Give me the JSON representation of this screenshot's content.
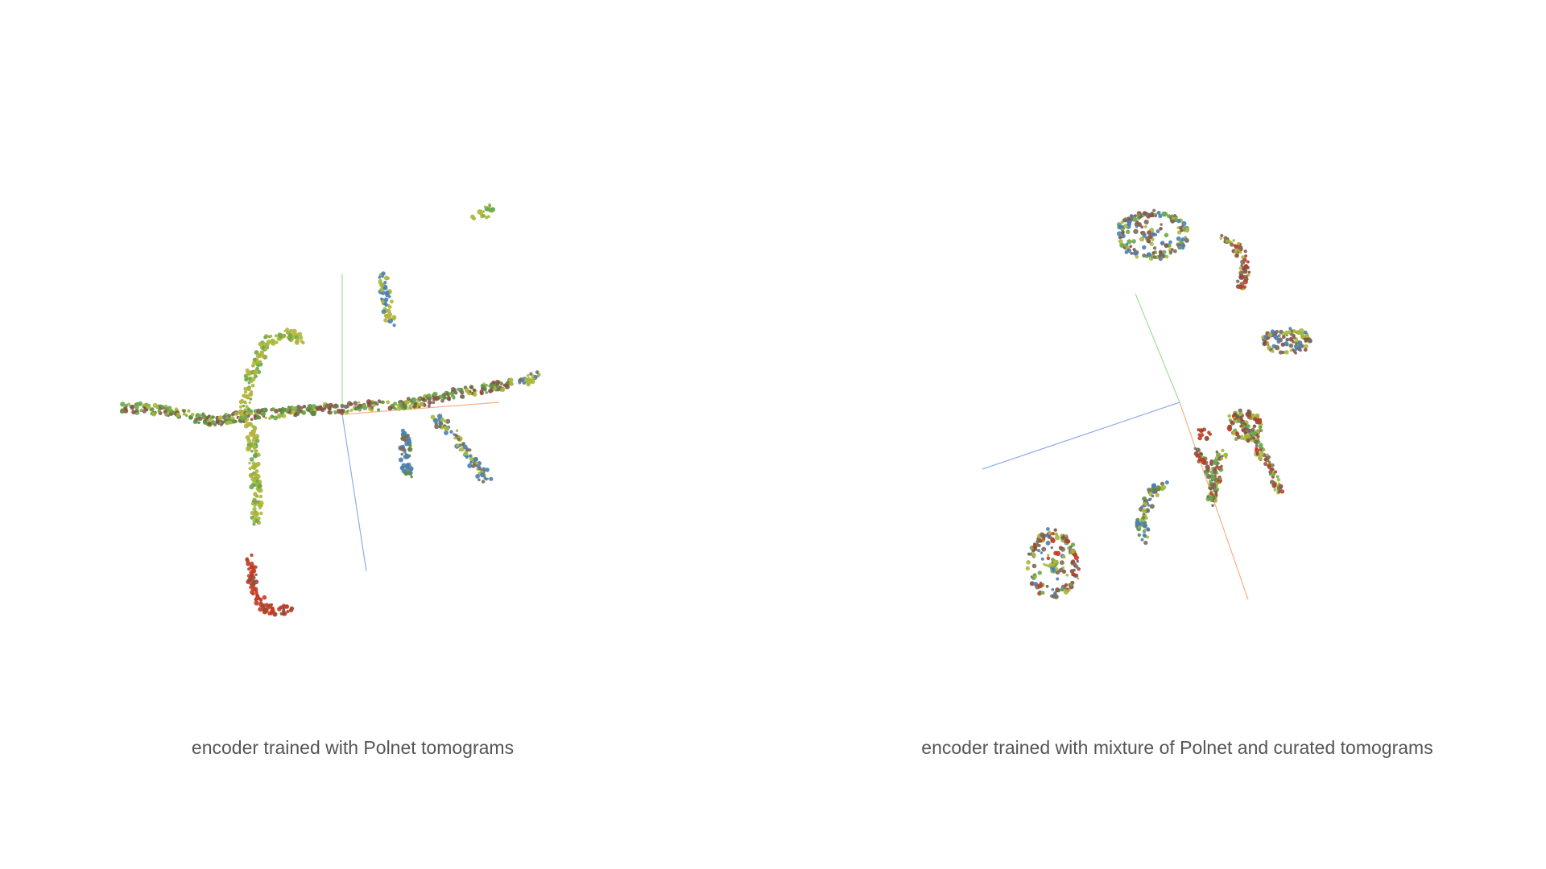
{
  "chart_data": [
    {
      "type": "scatter",
      "projection": "3d-embedding",
      "caption": "encoder trained with Polnet tomograms",
      "palette": [
        "#a9b83b",
        "#6aa84f",
        "#4a7fb5",
        "#c23b22",
        "#7a6a5a",
        "#b5b33a",
        "#5b8f3c",
        "#8b4f3f"
      ],
      "axes": [
        {
          "name": "x",
          "color": "#f5b08a"
        },
        {
          "name": "y",
          "color": "#9fe19a"
        },
        {
          "name": "z",
          "color": "#8faee8"
        }
      ],
      "clusters": [
        {
          "name": "horizontal-branch",
          "colors": [
            0,
            1,
            4,
            6,
            7
          ],
          "path": [
            [
              -2.9,
              0.1
            ],
            [
              -2.3,
              0.05
            ],
            [
              -1.7,
              -0.1
            ],
            [
              -1.1,
              0.0
            ],
            [
              -0.4,
              0.05
            ],
            [
              0.3,
              0.1
            ],
            [
              1.0,
              0.15
            ],
            [
              1.6,
              0.3
            ],
            [
              2.2,
              0.4
            ]
          ]
        },
        {
          "name": "upper-hook",
          "colors": [
            0,
            1,
            5
          ],
          "path": [
            [
              -1.3,
              -0.1
            ],
            [
              -1.2,
              0.5
            ],
            [
              -1.0,
              0.95
            ],
            [
              -0.7,
              1.05
            ],
            [
              -0.5,
              0.95
            ]
          ]
        },
        {
          "name": "vertical-stem",
          "colors": [
            0,
            1,
            5
          ],
          "path": [
            [
              -1.2,
              -0.1
            ],
            [
              -1.15,
              -0.6
            ],
            [
              -1.12,
              -1.1
            ],
            [
              -1.12,
              -1.4
            ]
          ]
        },
        {
          "name": "red-hook",
          "colors": [
            3,
            3,
            3,
            7
          ],
          "path": [
            [
              -1.2,
              -1.9
            ],
            [
              -1.15,
              -2.3
            ],
            [
              -1.05,
              -2.5
            ],
            [
              -0.85,
              -2.6
            ],
            [
              -0.7,
              -2.55
            ]
          ]
        },
        {
          "name": "small-upper-arm",
          "colors": [
            0,
            2,
            5
          ],
          "path": [
            [
              0.52,
              1.85
            ],
            [
              0.58,
              1.5
            ],
            [
              0.62,
              1.2
            ]
          ]
        },
        {
          "name": "top-fragment",
          "colors": [
            0,
            1,
            5
          ],
          "path": [
            [
              1.75,
              2.55
            ],
            [
              1.95,
              2.7
            ]
          ]
        },
        {
          "name": "blue-arm-down",
          "colors": [
            2,
            2,
            4,
            6
          ],
          "path": [
            [
              0.85,
              -0.2
            ],
            [
              0.82,
              -0.5
            ],
            [
              0.86,
              -0.8
            ]
          ]
        },
        {
          "name": "right-arm",
          "colors": [
            2,
            4,
            0
          ],
          "path": [
            [
              1.2,
              -0.05
            ],
            [
              1.5,
              -0.3
            ],
            [
              1.75,
              -0.7
            ],
            [
              1.9,
              -0.85
            ]
          ]
        },
        {
          "name": "far-right-fragment",
          "colors": [
            2,
            4,
            0
          ],
          "path": [
            [
              2.3,
              0.4
            ],
            [
              2.55,
              0.5
            ]
          ]
        }
      ]
    },
    {
      "type": "scatter",
      "projection": "3d-embedding",
      "caption": "encoder trained with mixture of Polnet and curated tomograms",
      "palette": [
        "#a9b83b",
        "#6aa84f",
        "#4a7fb5",
        "#c23b22",
        "#7a6a5a",
        "#b5b33a",
        "#5b8f3c",
        "#8b4f3f"
      ],
      "axes": [
        {
          "name": "x",
          "color": "#f5b08a"
        },
        {
          "name": "y",
          "color": "#9fe19a"
        },
        {
          "name": "z",
          "color": "#8faee8"
        }
      ],
      "clusters": [
        {
          "name": "top-left-loop",
          "colors": [
            0,
            2,
            4,
            7,
            1
          ],
          "loop": [
            -0.3,
            2.25,
            0.45,
            0.3
          ]
        },
        {
          "name": "top-right-crescent",
          "colors": [
            0,
            4,
            3,
            7
          ],
          "path": [
            [
              0.65,
              2.2
            ],
            [
              0.85,
              2.05
            ],
            [
              0.92,
              1.8
            ],
            [
              0.85,
              1.55
            ]
          ]
        },
        {
          "name": "right-loop",
          "colors": [
            0,
            4,
            7,
            2
          ],
          "loop": [
            1.45,
            0.85,
            0.3,
            0.15
          ]
        },
        {
          "name": "center-cluster",
          "colors": [
            0,
            1,
            3,
            4,
            7
          ],
          "path": [
            [
              0.8,
              -0.1
            ],
            [
              0.95,
              -0.3
            ],
            [
              1.2,
              -0.75
            ],
            [
              1.35,
              -1.1
            ]
          ]
        },
        {
          "name": "center-blob",
          "colors": [
            0,
            3,
            4,
            1,
            7
          ],
          "loop": [
            0.9,
            -0.25,
            0.22,
            0.18
          ]
        },
        {
          "name": "red-fragment",
          "colors": [
            3,
            3,
            3,
            7
          ],
          "path": [
            [
              0.3,
              -0.35
            ],
            [
              0.42,
              -0.38
            ]
          ]
        },
        {
          "name": "s-shape",
          "colors": [
            0,
            4,
            7,
            3,
            1
          ],
          "path": [
            [
              0.25,
              -0.55
            ],
            [
              0.45,
              -0.8
            ],
            [
              0.5,
              -1.05
            ],
            [
              0.48,
              -1.25
            ],
            [
              0.55,
              -0.75
            ],
            [
              0.62,
              -0.6
            ]
          ]
        },
        {
          "name": "left-crescent",
          "colors": [
            0,
            4,
            2,
            6
          ],
          "path": [
            [
              -0.15,
              -1.0
            ],
            [
              -0.35,
              -1.2
            ],
            [
              -0.45,
              -1.5
            ],
            [
              -0.4,
              -1.75
            ]
          ]
        },
        {
          "name": "bottom-egg",
          "colors": [
            0,
            1,
            2,
            3,
            4,
            7
          ],
          "loop": [
            -1.6,
            -2.05,
            0.32,
            0.42
          ]
        }
      ]
    }
  ],
  "captions": {
    "left": "encoder trained with Polnet tomograms",
    "right": "encoder trained with mixture of Polnet and curated tomograms"
  }
}
